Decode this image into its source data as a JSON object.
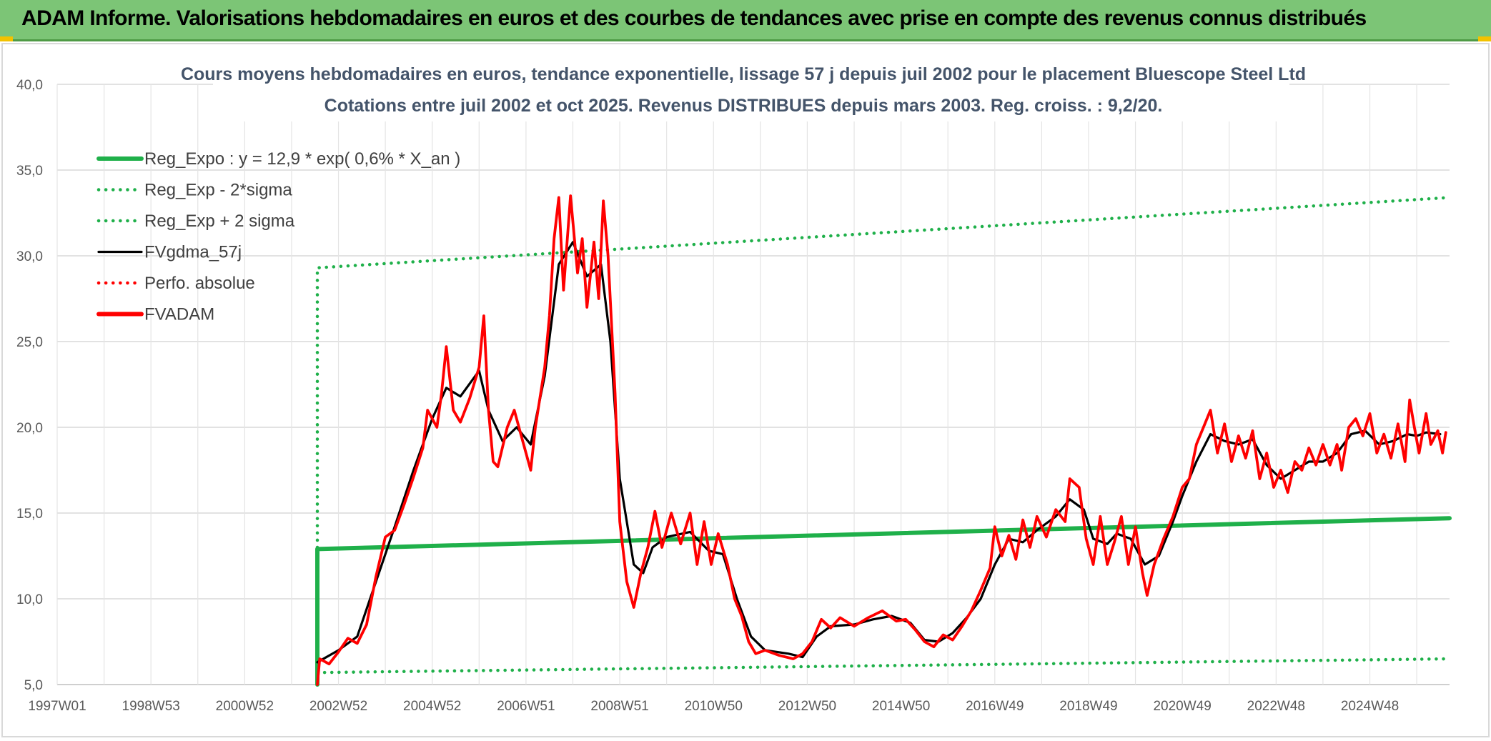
{
  "header": {
    "title": "ADAM Informe. Valorisations hebdomadaires en euros et des courbes de tendances avec prise en compte des revenus connus distribués"
  },
  "colors": {
    "banner": "#7cc576",
    "reg": "#1fb04a",
    "sigma": "#1fb04a",
    "gdma": "#000000",
    "adam": "#ff0000",
    "perfo": "#ff0000"
  },
  "chart_data": {
    "type": "line",
    "title": "Cours moyens hebdomadaires en euros, tendance exponentielle, lissage 57 j depuis juil 2002 pour le placement Bluescope Steel Ltd",
    "subtitle": "Cotations entre juil 2002 et oct 2025. Revenus DISTRIBUES depuis mars 2003. Reg. croiss. : 9,2/20.",
    "xlabel": "",
    "ylabel": "",
    "ylim": [
      5,
      40
    ],
    "yticks": [
      "5,0",
      "10,0",
      "15,0",
      "20,0",
      "25,0",
      "30,0",
      "35,0",
      "40,0"
    ],
    "x_range": [
      1997.0,
      2026.7
    ],
    "xticks": [
      {
        "label": "1997W01",
        "x": 1997.0
      },
      {
        "label": "1998W53",
        "x": 1999.0
      },
      {
        "label": "2000W52",
        "x": 2001.0
      },
      {
        "label": "2002W52",
        "x": 2003.0
      },
      {
        "label": "2004W52",
        "x": 2005.0
      },
      {
        "label": "2006W51",
        "x": 2007.0
      },
      {
        "label": "2008W51",
        "x": 2009.0
      },
      {
        "label": "2010W50",
        "x": 2011.0
      },
      {
        "label": "2012W50",
        "x": 2013.0
      },
      {
        "label": "2014W50",
        "x": 2015.0
      },
      {
        "label": "2016W49",
        "x": 2017.0
      },
      {
        "label": "2018W49",
        "x": 2019.0
      },
      {
        "label": "2020W49",
        "x": 2021.0
      },
      {
        "label": "2022W48",
        "x": 2023.0
      },
      {
        "label": "2024W48",
        "x": 2025.0
      }
    ],
    "grid": true,
    "legend_position": "top-left",
    "series": [
      {
        "name": "Reg_Expo : y = 12,9 * exp( 0,6% *  X_an )",
        "style": "solid-thick",
        "color": "#1fb04a",
        "points": [
          [
            2002.55,
            5.0
          ],
          [
            2002.55,
            12.9
          ],
          [
            2026.7,
            14.7
          ]
        ]
      },
      {
        "name": "Reg_Exp - 2*sigma",
        "style": "dotted",
        "color": "#1fb04a",
        "points": [
          [
            2002.55,
            5.7
          ],
          [
            2026.7,
            6.5
          ]
        ]
      },
      {
        "name": "Reg_Exp + 2 sigma",
        "style": "dotted",
        "color": "#1fb04a",
        "points": [
          [
            2002.55,
            5.0
          ],
          [
            2002.55,
            29.3
          ],
          [
            2026.7,
            33.4
          ]
        ]
      },
      {
        "name": "FVgdma_57j",
        "style": "solid",
        "color": "#000000",
        "points": [
          [
            2002.55,
            6.3
          ],
          [
            2003.0,
            7.0
          ],
          [
            2003.4,
            7.8
          ],
          [
            2003.8,
            11.0
          ],
          [
            2004.2,
            14.2
          ],
          [
            2004.6,
            17.5
          ],
          [
            2005.0,
            20.5
          ],
          [
            2005.3,
            22.3
          ],
          [
            2005.6,
            21.8
          ],
          [
            2006.0,
            23.3
          ],
          [
            2006.2,
            21.0
          ],
          [
            2006.5,
            19.2
          ],
          [
            2006.8,
            20.0
          ],
          [
            2007.1,
            19.0
          ],
          [
            2007.4,
            23.0
          ],
          [
            2007.7,
            29.5
          ],
          [
            2008.0,
            30.8
          ],
          [
            2008.3,
            28.8
          ],
          [
            2008.6,
            29.5
          ],
          [
            2008.8,
            25.0
          ],
          [
            2009.0,
            17.0
          ],
          [
            2009.3,
            12.0
          ],
          [
            2009.5,
            11.5
          ],
          [
            2009.7,
            13.0
          ],
          [
            2010.0,
            13.6
          ],
          [
            2010.5,
            13.9
          ],
          [
            2010.9,
            12.8
          ],
          [
            2011.2,
            12.6
          ],
          [
            2011.5,
            10.0
          ],
          [
            2011.8,
            7.8
          ],
          [
            2012.1,
            7.0
          ],
          [
            2012.6,
            6.8
          ],
          [
            2012.9,
            6.6
          ],
          [
            2013.2,
            7.8
          ],
          [
            2013.5,
            8.4
          ],
          [
            2014.0,
            8.5
          ],
          [
            2014.4,
            8.8
          ],
          [
            2014.8,
            9.0
          ],
          [
            2015.2,
            8.6
          ],
          [
            2015.5,
            7.6
          ],
          [
            2015.8,
            7.5
          ],
          [
            2016.1,
            8.0
          ],
          [
            2016.4,
            8.9
          ],
          [
            2016.7,
            10.0
          ],
          [
            2017.0,
            12.0
          ],
          [
            2017.3,
            13.5
          ],
          [
            2017.6,
            13.3
          ],
          [
            2017.9,
            14.0
          ],
          [
            2018.3,
            14.8
          ],
          [
            2018.6,
            15.8
          ],
          [
            2018.9,
            15.2
          ],
          [
            2019.1,
            13.5
          ],
          [
            2019.4,
            13.2
          ],
          [
            2019.6,
            13.8
          ],
          [
            2019.9,
            13.5
          ],
          [
            2020.2,
            12.0
          ],
          [
            2020.5,
            12.5
          ],
          [
            2020.8,
            14.5
          ],
          [
            2021.0,
            16.0
          ],
          [
            2021.3,
            18.0
          ],
          [
            2021.6,
            19.6
          ],
          [
            2021.9,
            19.2
          ],
          [
            2022.2,
            19.0
          ],
          [
            2022.5,
            19.3
          ],
          [
            2022.8,
            17.8
          ],
          [
            2023.1,
            17.0
          ],
          [
            2023.4,
            17.5
          ],
          [
            2023.7,
            18.0
          ],
          [
            2024.0,
            18.0
          ],
          [
            2024.3,
            18.5
          ],
          [
            2024.6,
            19.6
          ],
          [
            2024.9,
            19.8
          ],
          [
            2025.2,
            19.0
          ],
          [
            2025.5,
            19.2
          ],
          [
            2025.8,
            19.6
          ],
          [
            2026.0,
            19.5
          ],
          [
            2026.2,
            19.7
          ],
          [
            2026.5,
            19.6
          ]
        ]
      },
      {
        "name": "Perfo. absolue",
        "style": "dotted",
        "color": "#ff0000",
        "points": []
      },
      {
        "name": "FVADAM",
        "style": "solid-thick",
        "color": "#ff0000",
        "points": [
          [
            2002.55,
            5.0
          ],
          [
            2002.6,
            6.5
          ],
          [
            2002.8,
            6.2
          ],
          [
            2003.0,
            6.9
          ],
          [
            2003.2,
            7.7
          ],
          [
            2003.4,
            7.4
          ],
          [
            2003.6,
            8.5
          ],
          [
            2003.8,
            11.3
          ],
          [
            2004.0,
            13.6
          ],
          [
            2004.2,
            14.0
          ],
          [
            2004.4,
            15.5
          ],
          [
            2004.6,
            17.1
          ],
          [
            2004.8,
            18.8
          ],
          [
            2004.9,
            21.0
          ],
          [
            2005.1,
            20.0
          ],
          [
            2005.2,
            22.0
          ],
          [
            2005.3,
            24.7
          ],
          [
            2005.45,
            21.0
          ],
          [
            2005.6,
            20.3
          ],
          [
            2005.8,
            21.7
          ],
          [
            2006.0,
            23.5
          ],
          [
            2006.1,
            26.5
          ],
          [
            2006.2,
            21.0
          ],
          [
            2006.3,
            18.0
          ],
          [
            2006.4,
            17.7
          ],
          [
            2006.6,
            20.0
          ],
          [
            2006.75,
            21.0
          ],
          [
            2006.9,
            19.5
          ],
          [
            2007.1,
            17.5
          ],
          [
            2007.2,
            20.0
          ],
          [
            2007.4,
            23.5
          ],
          [
            2007.5,
            26.5
          ],
          [
            2007.6,
            31.0
          ],
          [
            2007.7,
            33.4
          ],
          [
            2007.8,
            28.0
          ],
          [
            2007.95,
            33.5
          ],
          [
            2008.1,
            29.0
          ],
          [
            2008.2,
            31.0
          ],
          [
            2008.3,
            27.0
          ],
          [
            2008.45,
            30.8
          ],
          [
            2008.55,
            27.5
          ],
          [
            2008.65,
            33.2
          ],
          [
            2008.75,
            30.0
          ],
          [
            2008.9,
            22.0
          ],
          [
            2009.0,
            14.5
          ],
          [
            2009.15,
            11.0
          ],
          [
            2009.3,
            9.5
          ],
          [
            2009.45,
            11.5
          ],
          [
            2009.6,
            13.0
          ],
          [
            2009.75,
            15.1
          ],
          [
            2009.9,
            13.0
          ],
          [
            2010.1,
            15.0
          ],
          [
            2010.3,
            13.2
          ],
          [
            2010.5,
            15.0
          ],
          [
            2010.65,
            12.0
          ],
          [
            2010.8,
            14.5
          ],
          [
            2010.95,
            12.0
          ],
          [
            2011.1,
            13.8
          ],
          [
            2011.3,
            12.0
          ],
          [
            2011.45,
            10.0
          ],
          [
            2011.6,
            9.0
          ],
          [
            2011.75,
            7.5
          ],
          [
            2011.9,
            6.8
          ],
          [
            2012.1,
            7.0
          ],
          [
            2012.4,
            6.7
          ],
          [
            2012.7,
            6.5
          ],
          [
            2012.9,
            6.8
          ],
          [
            2013.1,
            7.5
          ],
          [
            2013.3,
            8.8
          ],
          [
            2013.5,
            8.3
          ],
          [
            2013.7,
            8.9
          ],
          [
            2014.0,
            8.4
          ],
          [
            2014.3,
            8.9
          ],
          [
            2014.6,
            9.3
          ],
          [
            2014.9,
            8.7
          ],
          [
            2015.1,
            8.8
          ],
          [
            2015.3,
            8.2
          ],
          [
            2015.5,
            7.5
          ],
          [
            2015.7,
            7.2
          ],
          [
            2015.9,
            7.9
          ],
          [
            2016.1,
            7.6
          ],
          [
            2016.3,
            8.4
          ],
          [
            2016.5,
            9.3
          ],
          [
            2016.7,
            10.5
          ],
          [
            2016.9,
            11.8
          ],
          [
            2017.0,
            14.2
          ],
          [
            2017.15,
            12.5
          ],
          [
            2017.3,
            13.7
          ],
          [
            2017.45,
            12.3
          ],
          [
            2017.6,
            14.6
          ],
          [
            2017.75,
            13.0
          ],
          [
            2017.9,
            14.8
          ],
          [
            2018.1,
            13.6
          ],
          [
            2018.3,
            15.2
          ],
          [
            2018.5,
            14.5
          ],
          [
            2018.6,
            17.0
          ],
          [
            2018.8,
            16.5
          ],
          [
            2018.95,
            13.5
          ],
          [
            2019.1,
            12.0
          ],
          [
            2019.25,
            14.8
          ],
          [
            2019.4,
            12.0
          ],
          [
            2019.55,
            13.3
          ],
          [
            2019.7,
            14.8
          ],
          [
            2019.85,
            12.0
          ],
          [
            2020.0,
            14.2
          ],
          [
            2020.15,
            11.5
          ],
          [
            2020.25,
            10.2
          ],
          [
            2020.4,
            12.0
          ],
          [
            2020.6,
            13.5
          ],
          [
            2020.8,
            14.8
          ],
          [
            2021.0,
            16.5
          ],
          [
            2021.15,
            17.0
          ],
          [
            2021.3,
            19.0
          ],
          [
            2021.45,
            20.0
          ],
          [
            2021.6,
            21.0
          ],
          [
            2021.75,
            18.5
          ],
          [
            2021.9,
            20.2
          ],
          [
            2022.05,
            18.0
          ],
          [
            2022.2,
            19.5
          ],
          [
            2022.35,
            18.2
          ],
          [
            2022.5,
            19.8
          ],
          [
            2022.65,
            17.0
          ],
          [
            2022.8,
            18.5
          ],
          [
            2022.95,
            16.5
          ],
          [
            2023.1,
            17.5
          ],
          [
            2023.25,
            16.2
          ],
          [
            2023.4,
            18.0
          ],
          [
            2023.55,
            17.5
          ],
          [
            2023.7,
            18.8
          ],
          [
            2023.85,
            17.8
          ],
          [
            2024.0,
            19.0
          ],
          [
            2024.15,
            17.8
          ],
          [
            2024.3,
            19.0
          ],
          [
            2024.4,
            17.5
          ],
          [
            2024.55,
            20.0
          ],
          [
            2024.7,
            20.5
          ],
          [
            2024.85,
            19.5
          ],
          [
            2025.0,
            20.8
          ],
          [
            2025.15,
            18.5
          ],
          [
            2025.3,
            19.6
          ],
          [
            2025.45,
            18.2
          ],
          [
            2025.6,
            20.2
          ],
          [
            2025.75,
            18.0
          ],
          [
            2025.85,
            21.6
          ],
          [
            2025.95,
            20.0
          ],
          [
            2026.05,
            18.5
          ],
          [
            2026.2,
            20.8
          ],
          [
            2026.3,
            19.0
          ],
          [
            2026.45,
            19.8
          ],
          [
            2026.55,
            18.5
          ],
          [
            2026.62,
            19.7
          ]
        ]
      }
    ]
  }
}
